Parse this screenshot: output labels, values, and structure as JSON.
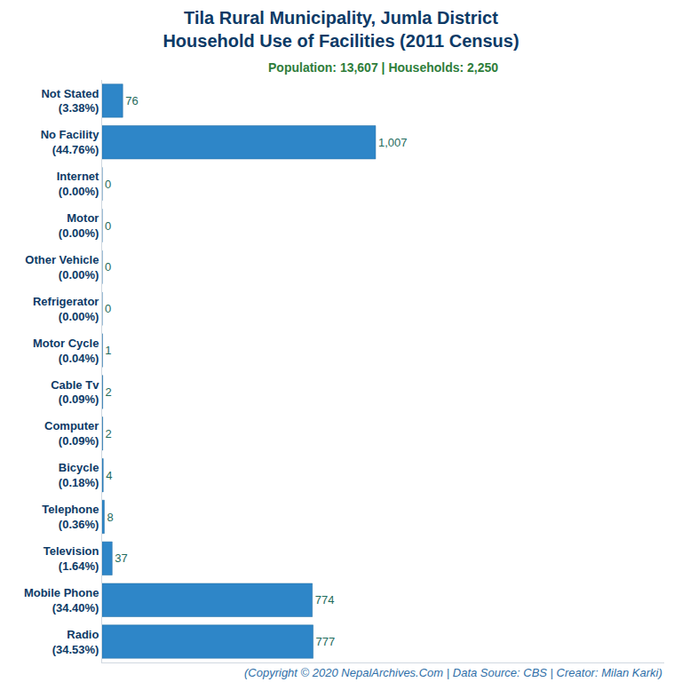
{
  "chart_data": {
    "type": "bar",
    "title": "Tila Rural Municipality, Jumla District\nHousehold Use of Facilities (2011 Census)",
    "subtitle": "Population: 13,607 | Households: 2,250",
    "annotations": [
      "(Copyright © 2020 NepalArchives.Com | Data Source: CBS | Creator: Milan Karki)"
    ],
    "orientation": "horizontal",
    "categories": [
      "Not Stated\n(3.38%)",
      "No Facility\n(44.76%)",
      "Internet\n(0.00%)",
      "Motor\n(0.00%)",
      "Other Vehicle\n(0.00%)",
      "Refrigerator\n(0.00%)",
      "Motor Cycle\n(0.04%)",
      "Cable Tv\n(0.09%)",
      "Computer\n(0.09%)",
      "Bicycle\n(0.18%)",
      "Telephone\n(0.36%)",
      "Television\n(1.64%)",
      "Mobile Phone\n(34.40%)",
      "Radio\n(34.53%)"
    ],
    "values": [
      76,
      1007,
      0,
      0,
      0,
      0,
      1,
      2,
      2,
      4,
      8,
      37,
      774,
      777
    ],
    "value_labels": [
      "76",
      "1,007",
      "0",
      "0",
      "0",
      "0",
      "1",
      "2",
      "2",
      "4",
      "8",
      "37",
      "774",
      "777"
    ],
    "color": "#2e86c8",
    "xlim": [
      0,
      2070
    ],
    "xticks": [],
    "data_labels": true,
    "tick_labels": "y",
    "grid": false
  }
}
